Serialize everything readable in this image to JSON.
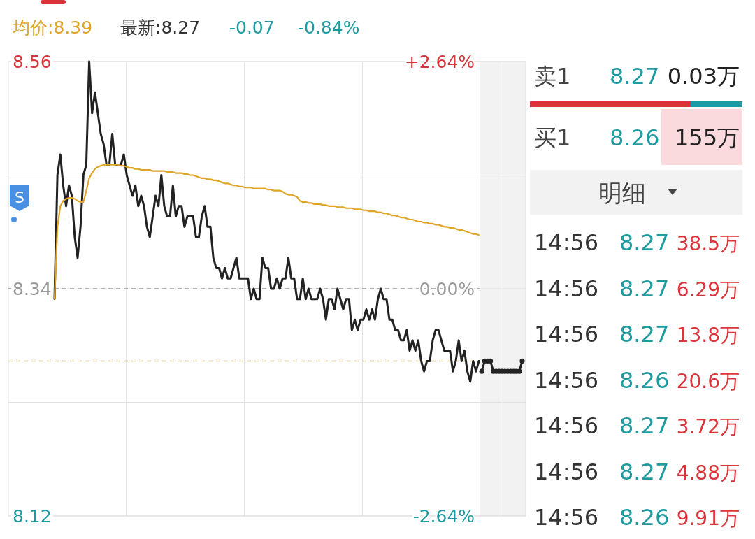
{
  "chart_data": [
    {
      "type": "line",
      "categories": [
        null,
        null,
        null,
        null,
        null,
        null,
        null,
        null,
        null,
        null,
        null,
        null,
        null,
        null,
        null,
        null,
        null,
        null,
        null,
        null,
        null,
        null,
        null,
        null,
        null,
        null,
        null,
        null,
        null,
        null,
        null,
        null,
        null,
        null,
        null,
        null,
        null,
        null,
        null,
        null,
        null,
        null,
        null,
        null,
        null,
        null,
        null,
        null,
        null,
        null,
        null,
        null,
        null,
        null,
        null,
        null,
        null,
        null,
        null,
        null,
        null,
        null,
        null,
        null,
        null,
        null,
        null,
        null,
        null,
        null,
        null,
        null,
        null,
        null,
        null,
        null,
        null,
        null,
        null,
        null,
        null,
        null,
        null,
        null,
        null,
        null,
        null,
        null,
        null,
        null,
        null,
        null,
        null,
        null,
        null,
        null,
        null,
        null,
        null,
        null,
        null,
        null,
        null,
        null,
        null,
        null,
        null,
        null,
        null,
        null,
        null,
        null,
        null,
        null,
        null,
        null,
        null,
        null,
        null,
        null,
        null,
        null,
        null,
        null,
        null,
        null,
        null,
        null,
        null,
        null,
        null,
        null,
        null,
        null,
        null,
        null,
        null,
        null,
        null,
        null,
        null,
        null,
        null,
        null,
        null,
        null,
        null,
        null,
        null,
        null,
        null,
        null,
        null,
        null,
        null,
        null,
        null,
        null,
        null,
        null,
        null,
        null,
        null
      ],
      "series": [
        {
          "color": "#222222",
          "values": [
            8.33,
            8.45,
            8.47,
            8.44,
            8.42,
            8.44,
            8.43,
            8.39,
            8.37,
            8.4,
            8.45,
            8.46,
            8.56,
            8.51,
            8.53,
            8.51,
            8.49,
            8.48,
            8.46,
            8.46,
            8.49,
            8.46,
            8.46,
            8.46,
            8.47,
            8.45,
            8.44,
            8.43,
            8.44,
            8.42,
            8.43,
            8.42,
            8.4,
            8.39,
            8.41,
            8.43,
            8.42,
            8.45,
            8.42,
            8.41,
            8.41,
            8.44,
            8.41,
            8.42,
            8.42,
            8.4,
            8.41,
            8.41,
            8.41,
            8.39,
            8.39,
            8.41,
            8.42,
            8.4,
            8.4,
            8.37,
            8.36,
            8.36,
            8.35,
            8.36,
            8.35,
            8.35,
            8.36,
            8.37,
            8.35,
            8.35,
            8.35,
            8.35,
            8.33,
            8.34,
            8.33,
            8.33,
            8.37,
            8.36,
            8.36,
            8.34,
            8.34,
            8.35,
            8.34,
            8.35,
            8.35,
            8.37,
            8.35,
            8.35,
            8.33,
            8.33,
            8.35,
            8.33,
            8.34,
            8.33,
            8.33,
            8.33,
            8.34,
            8.33,
            8.31,
            8.33,
            8.33,
            8.32,
            8.34,
            8.33,
            8.32,
            8.33,
            8.33,
            8.3,
            8.31,
            8.3,
            8.31,
            8.31,
            8.32,
            8.31,
            8.32,
            8.31,
            8.33,
            8.34,
            8.33,
            8.33,
            8.31,
            8.31,
            8.3,
            8.3,
            8.29,
            8.29,
            8.3,
            8.28,
            8.29,
            8.28,
            8.29,
            8.27,
            8.26,
            8.27,
            8.27,
            8.29,
            8.3,
            8.3,
            8.29,
            8.28,
            8.28,
            8.28,
            8.26,
            8.27,
            8.29,
            8.27,
            8.28,
            8.26,
            8.25,
            8.27,
            8.26,
            8.27,
            null,
            null,
            null,
            null,
            null,
            null,
            null,
            null,
            null,
            null,
            null,
            null,
            null,
            null,
            null
          ]
        },
        {
          "color": "#e0a526",
          "values": [
            8.33,
            8.4,
            8.42,
            8.425,
            8.427,
            8.428,
            8.428,
            8.427,
            8.425,
            8.424,
            8.424,
            8.435,
            8.447,
            8.452,
            8.456,
            8.458,
            8.459,
            8.46,
            8.46,
            8.46,
            8.46,
            8.46,
            8.46,
            8.459,
            8.459,
            8.458,
            8.457,
            8.457,
            8.456,
            8.456,
            8.455,
            8.455,
            8.455,
            8.455,
            8.454,
            8.454,
            8.454,
            8.454,
            8.454,
            8.453,
            8.453,
            8.453,
            8.452,
            8.452,
            8.452,
            8.451,
            8.451,
            8.45,
            8.45,
            8.449,
            8.448,
            8.447,
            8.447,
            8.446,
            8.446,
            8.445,
            8.445,
            8.444,
            8.443,
            8.442,
            8.442,
            8.441,
            8.44,
            8.44,
            8.439,
            8.439,
            8.438,
            8.438,
            8.438,
            8.437,
            8.437,
            8.437,
            8.437,
            8.437,
            8.436,
            8.436,
            8.435,
            8.435,
            8.435,
            8.434,
            8.432,
            8.431,
            8.431,
            8.43,
            8.429,
            8.425,
            8.424,
            8.424,
            8.423,
            8.423,
            8.422,
            8.422,
            8.422,
            8.421,
            8.421,
            8.42,
            8.42,
            8.42,
            8.419,
            8.419,
            8.419,
            8.418,
            8.418,
            8.418,
            8.417,
            8.417,
            8.417,
            8.416,
            8.416,
            8.415,
            8.415,
            8.415,
            8.414,
            8.414,
            8.413,
            8.413,
            8.412,
            8.411,
            8.411,
            8.41,
            8.409,
            8.409,
            8.408,
            8.407,
            8.407,
            8.406,
            8.405,
            8.405,
            8.404,
            8.404,
            8.403,
            8.403,
            8.402,
            8.402,
            8.401,
            8.4,
            8.4,
            8.399,
            8.399,
            8.398,
            8.397,
            8.397,
            8.396,
            8.395,
            8.394,
            8.393,
            8.393,
            8.392,
            null,
            null,
            null,
            null,
            null,
            null,
            null,
            null,
            null,
            null,
            null,
            null,
            null,
            null,
            null
          ]
        },
        {
          "color": "#222222",
          "marker": "circle",
          "values": [
            null,
            null,
            null,
            null,
            null,
            null,
            null,
            null,
            null,
            null,
            null,
            null,
            null,
            null,
            null,
            null,
            null,
            null,
            null,
            null,
            null,
            null,
            null,
            null,
            null,
            null,
            null,
            null,
            null,
            null,
            null,
            null,
            null,
            null,
            null,
            null,
            null,
            null,
            null,
            null,
            null,
            null,
            null,
            null,
            null,
            null,
            null,
            null,
            null,
            null,
            null,
            null,
            null,
            null,
            null,
            null,
            null,
            null,
            null,
            null,
            null,
            null,
            null,
            null,
            null,
            null,
            null,
            null,
            null,
            null,
            null,
            null,
            null,
            null,
            null,
            null,
            null,
            null,
            null,
            null,
            null,
            null,
            null,
            null,
            null,
            null,
            null,
            null,
            null,
            null,
            null,
            null,
            null,
            null,
            null,
            null,
            null,
            null,
            null,
            null,
            null,
            null,
            null,
            null,
            null,
            null,
            null,
            null,
            null,
            null,
            null,
            null,
            null,
            null,
            null,
            null,
            null,
            null,
            null,
            null,
            null,
            null,
            null,
            null,
            null,
            null,
            null,
            null,
            null,
            null,
            null,
            null,
            null,
            null,
            null,
            null,
            null,
            null,
            null,
            null,
            null,
            null,
            null,
            null,
            null,
            null,
            null,
            null,
            8.26,
            8.27,
            8.27,
            8.27,
            8.26,
            8.26,
            8.26,
            8.26,
            8.26,
            8.26,
            8.26,
            8.26,
            8.26,
            8.26,
            8.27
          ]
        }
      ],
      "ylim": [
        8.12,
        8.56
      ],
      "yticks": [
        8.56,
        {
          "value": 8.45,
          "label": null
        },
        8.34,
        {
          "value": 8.23,
          "label": null
        },
        8.12
      ],
      "y2lim": [
        -2.64,
        2.64
      ],
      "y2ticks": [
        {
          "value": 2.64,
          "label": "+2.64%"
        },
        {
          "value": 0,
          "label": "0.00%"
        },
        {
          "value": -2.64,
          "label": "-2.64%"
        }
      ],
      "ref_lines": [
        {
          "axis": "y",
          "value": 8.34,
          "color": "#999999",
          "line_style": "dashed"
        },
        {
          "axis": "y",
          "value": 8.27,
          "color": "#c8b98a",
          "line_style": "dashed"
        }
      ],
      "grid": true,
      "tick_labels": "y",
      "annotations": [
        "均价:8.39",
        "最新:8.27",
        "-0.07",
        "-0.84%",
        "S"
      ]
    },
    {
      "type": "other",
      "annotations": [
        "卖1",
        "8.27",
        "0.03万",
        "买1",
        "8.26",
        "155万",
        "明细",
        "14:56",
        "8.27",
        "38.5万",
        "14:56",
        "8.27",
        "6.29万",
        "14:56",
        "8.27",
        "13.8万",
        "14:56",
        "8.26",
        "20.6万",
        "14:56",
        "8.27",
        "3.72万",
        "14:56",
        "8.27",
        "4.88万",
        "14:56",
        "8.26",
        "9.91万"
      ]
    }
  ]
}
